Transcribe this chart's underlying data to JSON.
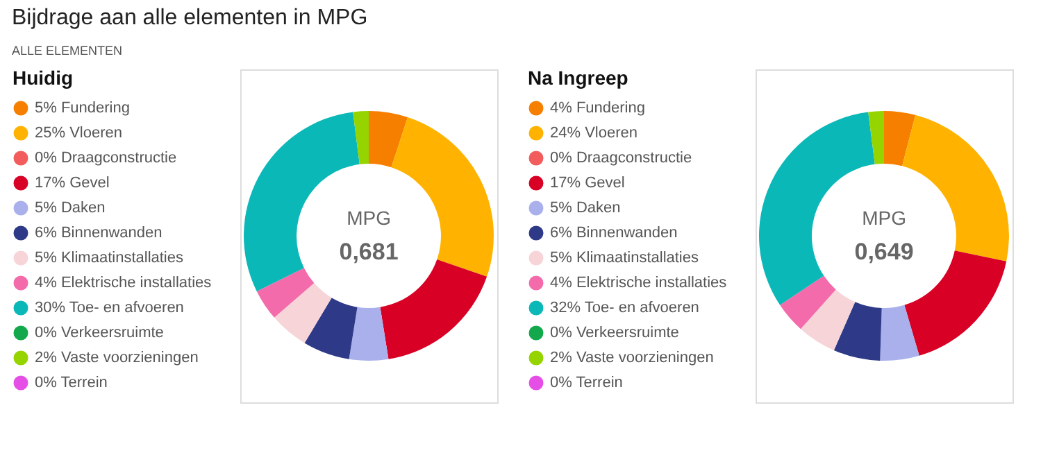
{
  "chart_data": [
    {
      "type": "donut",
      "title": "Bijdrage aan alle elementen in MPG",
      "subtitle": "ALLE ELEMENTEN",
      "legend_title": "Huidig",
      "legend": "left",
      "categories": [
        "Fundering",
        "Vloeren",
        "Draagconstructie",
        "Gevel",
        "Daken",
        "Binnenwanden",
        "Klimaatinstallaties",
        "Elektrische installaties",
        "Toe- en afvoeren",
        "Verkeersruimte",
        "Vaste voorzieningen",
        "Terrein"
      ],
      "values": [
        5,
        25,
        0,
        17,
        5,
        6,
        5,
        4,
        30,
        0,
        2,
        0
      ],
      "value_labels": [
        "5%",
        "25%",
        "0%",
        "17%",
        "5%",
        "6%",
        "5%",
        "4%",
        "30%",
        "0%",
        "2%",
        "0%"
      ],
      "colors": [
        "#f77f00",
        "#ffb300",
        "#f25c5c",
        "#d90025",
        "#a9b0ec",
        "#2e3a87",
        "#f7d4d8",
        "#f46bab",
        "#0bb8b8",
        "#13a84c",
        "#96d400",
        "#e64fe6"
      ],
      "annotations": [
        "MPG",
        "0,681"
      ]
    },
    {
      "type": "donut",
      "legend_title": "Na Ingreep",
      "legend": "left",
      "categories": [
        "Fundering",
        "Vloeren",
        "Draagconstructie",
        "Gevel",
        "Daken",
        "Binnenwanden",
        "Klimaatinstallaties",
        "Elektrische installaties",
        "Toe- en afvoeren",
        "Verkeersruimte",
        "Vaste voorzieningen",
        "Terrein"
      ],
      "values": [
        4,
        24,
        0,
        17,
        5,
        6,
        5,
        4,
        32,
        0,
        2,
        0
      ],
      "value_labels": [
        "4%",
        "24%",
        "0%",
        "17%",
        "5%",
        "6%",
        "5%",
        "4%",
        "32%",
        "0%",
        "2%",
        "0%"
      ],
      "colors": [
        "#f77f00",
        "#ffb300",
        "#f25c5c",
        "#d90025",
        "#a9b0ec",
        "#2e3a87",
        "#f7d4d8",
        "#f46bab",
        "#0bb8b8",
        "#13a84c",
        "#96d400",
        "#e64fe6"
      ],
      "annotations": [
        "MPG",
        "0,649"
      ]
    }
  ]
}
